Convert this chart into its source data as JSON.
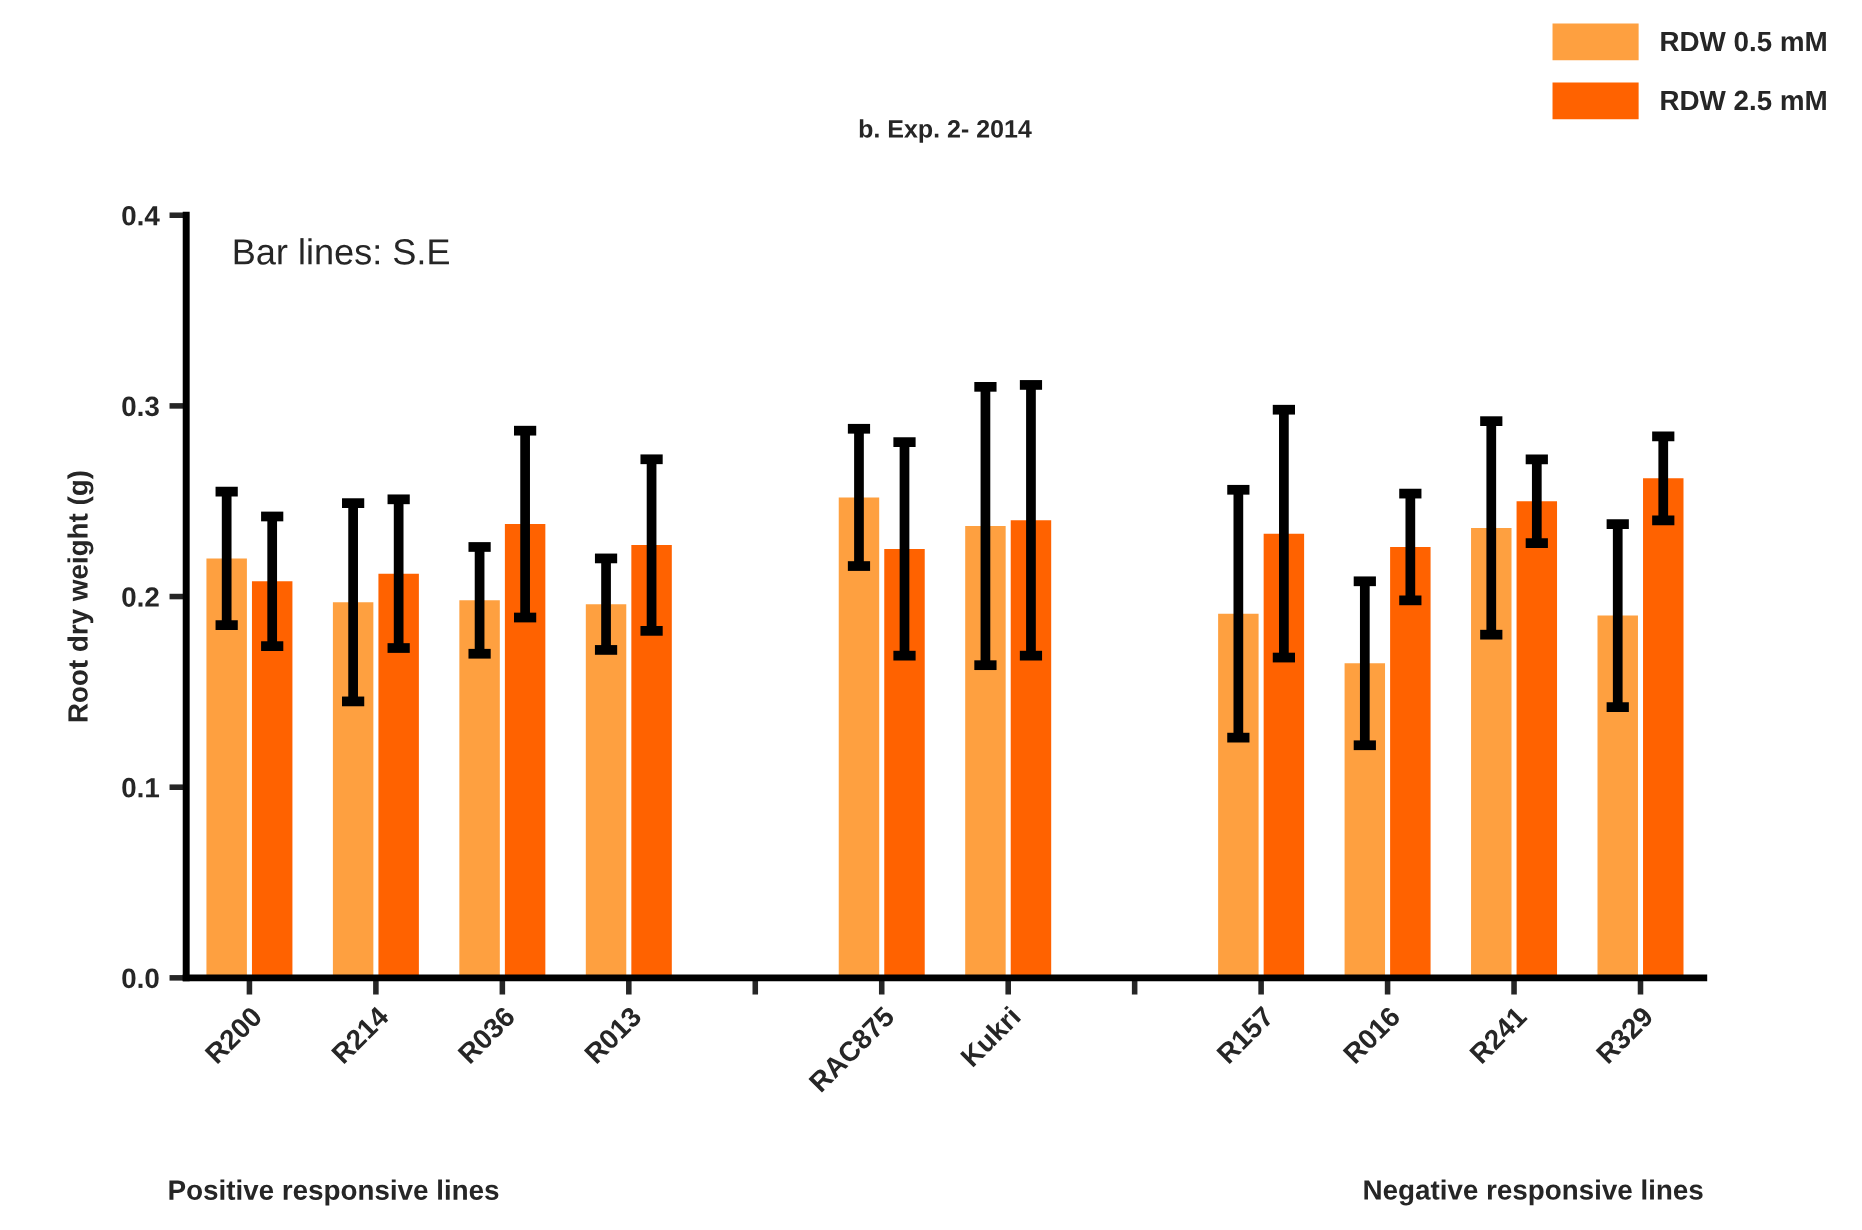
{
  "chart_data": {
    "type": "bar",
    "title": "b. Exp. 2- 2014",
    "ylabel": "Root dry weight (g)",
    "categories": [
      "R200",
      "R214",
      "R036",
      "R013",
      null,
      "RAC875",
      "Kukri",
      null,
      "R157",
      "R016",
      "R241",
      "R329"
    ],
    "series": [
      {
        "name": "RDW 0.5 mM",
        "color": "#fea040",
        "values": [
          0.22,
          0.197,
          0.198,
          0.196,
          null,
          0.252,
          0.237,
          null,
          0.191,
          0.165,
          0.236,
          0.19
        ],
        "errors": [
          0.035,
          0.052,
          0.028,
          0.024,
          null,
          0.036,
          0.073,
          null,
          0.065,
          0.043,
          0.056,
          0.048
        ]
      },
      {
        "name": "RDW 2.5 mM",
        "color": "#ff6200",
        "values": [
          0.208,
          0.212,
          0.238,
          0.227,
          null,
          0.225,
          0.24,
          null,
          0.233,
          0.226,
          0.25,
          0.262
        ],
        "errors": [
          0.034,
          0.039,
          0.049,
          0.045,
          null,
          0.056,
          0.071,
          null,
          0.065,
          0.028,
          0.022,
          0.022
        ]
      }
    ],
    "ylim": [
      0,
      0.4
    ],
    "yticks": [
      {
        "value": 0,
        "label": "0.0"
      },
      0.1,
      0.2,
      0.3,
      0.4
    ],
    "grid": false,
    "legend": "top right",
    "annotations": [
      "Bar lines: S.E",
      "Positive responsive lines",
      "Negative responsive lines"
    ]
  }
}
